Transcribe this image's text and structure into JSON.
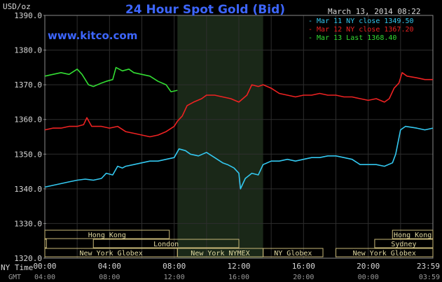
{
  "header": {
    "title": "24 Hour Spot Gold (Bid)",
    "date": "March 13, 2014 08:22",
    "unit": "USD/oz",
    "site": "www.kitco.com"
  },
  "axis": {
    "y_ticks": [
      "1390.0",
      "1380.0",
      "1370.0",
      "1360.0",
      "1350.0",
      "1340.0",
      "1330.0",
      "1320.0"
    ],
    "x_ticks_ny": [
      "00:00",
      "04:00",
      "08:00",
      "12:00",
      "16:00",
      "20:00",
      "23:59"
    ],
    "x_ticks_gmt": [
      "04:00",
      "08:00",
      "12:00",
      "16:00",
      "20:00",
      "00:00",
      "03:59"
    ],
    "ny_label": "NY Time",
    "gmt_label": "GMT"
  },
  "markets": {
    "row1": [
      {
        "name": "Hong Kong",
        "start": 0,
        "end": 7.7
      },
      {
        "name": "Hong Kong",
        "start": 21.5,
        "end": 24
      }
    ],
    "row2": [
      {
        "name": "",
        "start": 0,
        "end": 0.1
      },
      {
        "name": "London",
        "start": 3.0,
        "end": 12.0
      },
      {
        "name": "Sydney",
        "start": 20.4,
        "end": 24
      }
    ],
    "row3": [
      {
        "name": "New York Globex",
        "start": 0,
        "end": 8.2
      },
      {
        "name": "New York NYMEX",
        "start": 8.2,
        "end": 13.5
      },
      {
        "name": "NY Globex",
        "start": 13.5,
        "end": 17.2
      },
      {
        "name": "New York Globex",
        "start": 18.0,
        "end": 24
      }
    ]
  },
  "chart_data": {
    "type": "line",
    "title": "24 Hour Spot Gold (Bid)",
    "ylabel": "USD/oz",
    "xlim": [
      0,
      24
    ],
    "ylim": [
      1320,
      1390
    ],
    "grid": true,
    "legend_position": "top-right",
    "shaded_region_hours": [
      8.2,
      13.5
    ],
    "series": [
      {
        "name": "Mar 11 NY close 1349.50",
        "color": "#33c8f0",
        "points": [
          [
            0,
            1340.5
          ],
          [
            0.5,
            1341
          ],
          [
            1,
            1341.5
          ],
          [
            1.5,
            1342
          ],
          [
            2,
            1342.5
          ],
          [
            2.5,
            1342.8
          ],
          [
            3,
            1342.5
          ],
          [
            3.5,
            1343
          ],
          [
            3.8,
            1344.5
          ],
          [
            4.2,
            1344
          ],
          [
            4.5,
            1346.5
          ],
          [
            4.8,
            1346
          ],
          [
            5,
            1346.5
          ],
          [
            5.5,
            1347
          ],
          [
            6,
            1347.5
          ],
          [
            6.5,
            1348
          ],
          [
            7,
            1348
          ],
          [
            7.5,
            1348.5
          ],
          [
            8,
            1349
          ],
          [
            8.3,
            1351.5
          ],
          [
            8.7,
            1351
          ],
          [
            9,
            1350
          ],
          [
            9.5,
            1349.5
          ],
          [
            10,
            1350.5
          ],
          [
            10.5,
            1349
          ],
          [
            11,
            1347.5
          ],
          [
            11.3,
            1347
          ],
          [
            11.7,
            1346
          ],
          [
            12,
            1344.5
          ],
          [
            12.1,
            1340
          ],
          [
            12.4,
            1343
          ],
          [
            12.8,
            1344.5
          ],
          [
            13.2,
            1344
          ],
          [
            13.5,
            1347
          ],
          [
            14,
            1348
          ],
          [
            14.5,
            1348
          ],
          [
            15,
            1348.5
          ],
          [
            15.5,
            1348
          ],
          [
            16,
            1348.5
          ],
          [
            16.5,
            1349
          ],
          [
            17,
            1349
          ],
          [
            17.5,
            1349.5
          ],
          [
            18,
            1349.5
          ],
          [
            18.5,
            1349
          ],
          [
            19,
            1348.5
          ],
          [
            19.5,
            1347
          ],
          [
            20,
            1347
          ],
          [
            20.5,
            1347
          ],
          [
            21,
            1346.5
          ],
          [
            21.5,
            1347.5
          ],
          [
            21.7,
            1350
          ],
          [
            22,
            1357
          ],
          [
            22.3,
            1358
          ],
          [
            23,
            1357.5
          ],
          [
            23.5,
            1357
          ],
          [
            24,
            1357.5
          ]
        ]
      },
      {
        "name": "Mar 12 NY close 1367.20",
        "color": "#ee2222",
        "points": [
          [
            0,
            1357
          ],
          [
            0.5,
            1357.5
          ],
          [
            1,
            1357.5
          ],
          [
            1.5,
            1358
          ],
          [
            2,
            1358
          ],
          [
            2.4,
            1358.5
          ],
          [
            2.6,
            1360.5
          ],
          [
            2.9,
            1358
          ],
          [
            3.5,
            1358
          ],
          [
            4,
            1357.5
          ],
          [
            4.5,
            1358
          ],
          [
            5,
            1356.5
          ],
          [
            5.5,
            1356
          ],
          [
            6,
            1355.5
          ],
          [
            6.5,
            1355
          ],
          [
            7,
            1355.5
          ],
          [
            7.5,
            1356.5
          ],
          [
            8,
            1358
          ],
          [
            8.2,
            1359.5
          ],
          [
            8.5,
            1361
          ],
          [
            8.8,
            1364
          ],
          [
            9.2,
            1365
          ],
          [
            9.7,
            1366
          ],
          [
            10,
            1367
          ],
          [
            10.5,
            1367
          ],
          [
            11,
            1366.5
          ],
          [
            11.5,
            1366
          ],
          [
            12,
            1365
          ],
          [
            12.5,
            1367
          ],
          [
            12.8,
            1370
          ],
          [
            13.2,
            1369.5
          ],
          [
            13.5,
            1370
          ],
          [
            14,
            1369
          ],
          [
            14.5,
            1367.5
          ],
          [
            15,
            1367
          ],
          [
            15.5,
            1366.5
          ],
          [
            16,
            1367
          ],
          [
            16.5,
            1367
          ],
          [
            17,
            1367.5
          ],
          [
            17.5,
            1367
          ],
          [
            18,
            1367
          ],
          [
            18.5,
            1366.5
          ],
          [
            19,
            1366.5
          ],
          [
            19.5,
            1366
          ],
          [
            20,
            1365.5
          ],
          [
            20.5,
            1366
          ],
          [
            21,
            1365
          ],
          [
            21.3,
            1366
          ],
          [
            21.6,
            1369
          ],
          [
            21.9,
            1370.5
          ],
          [
            22.1,
            1373.5
          ],
          [
            22.4,
            1372.5
          ],
          [
            23,
            1372
          ],
          [
            23.5,
            1371.5
          ],
          [
            24,
            1371.5
          ]
        ]
      },
      {
        "name": "Mar 13 Last 1368.40",
        "color": "#33dd33",
        "points": [
          [
            0,
            1372.5
          ],
          [
            0.5,
            1373
          ],
          [
            1,
            1373.5
          ],
          [
            1.5,
            1373
          ],
          [
            2,
            1374.5
          ],
          [
            2.3,
            1373
          ],
          [
            2.7,
            1370
          ],
          [
            3,
            1369.5
          ],
          [
            3.5,
            1370.5
          ],
          [
            3.8,
            1371
          ],
          [
            4.2,
            1371.5
          ],
          [
            4.4,
            1375
          ],
          [
            4.8,
            1374
          ],
          [
            5.2,
            1374.5
          ],
          [
            5.5,
            1373.5
          ],
          [
            6,
            1373
          ],
          [
            6.5,
            1372.5
          ],
          [
            7,
            1371
          ],
          [
            7.5,
            1370
          ],
          [
            7.8,
            1368
          ],
          [
            8.2,
            1368.4
          ]
        ]
      }
    ]
  }
}
